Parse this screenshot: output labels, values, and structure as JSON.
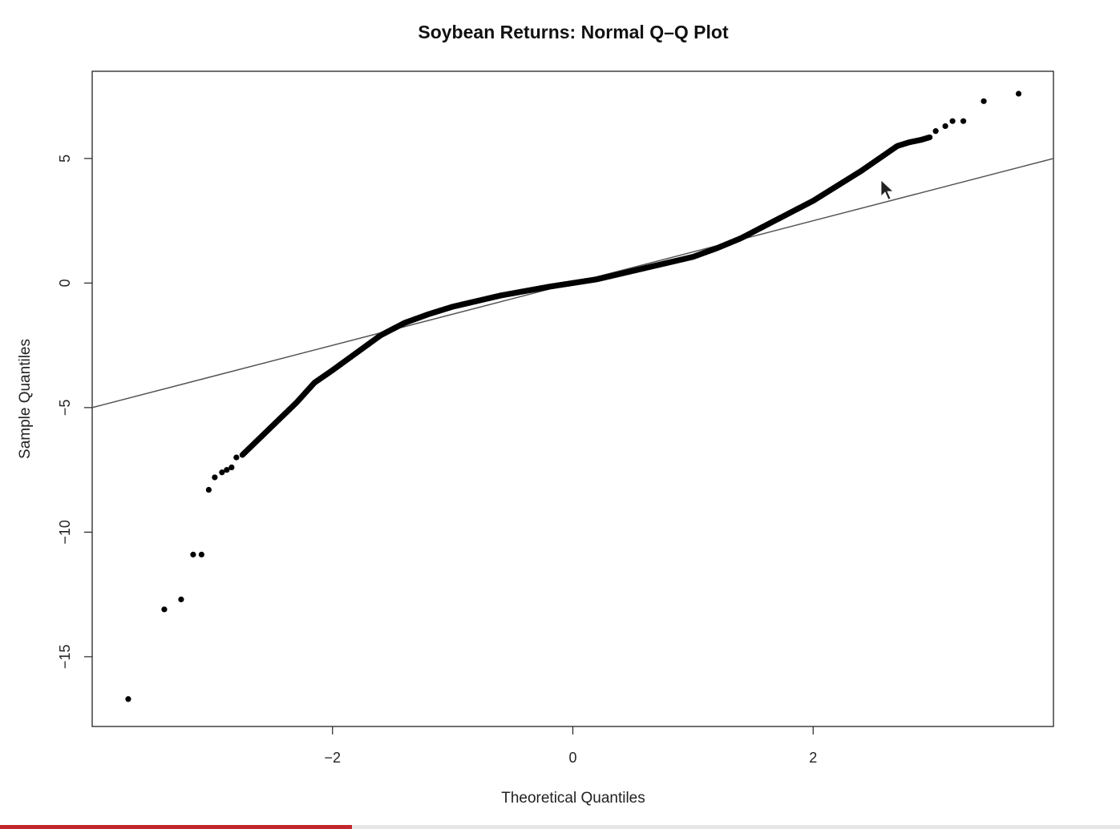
{
  "chart_data": {
    "type": "scatter",
    "title": "Soybean Returns: Normal Q–Q Plot",
    "xlabel": "Theoretical Quantiles",
    "ylabel": "Sample Quantiles",
    "xlim": [
      -4.0,
      4.0
    ],
    "ylim": [
      -17.8,
      8.5
    ],
    "xticks": [
      -2,
      0,
      2
    ],
    "xtick_labels": [
      "−2",
      "0",
      "2"
    ],
    "yticks": [
      -15,
      -10,
      -5,
      0,
      5
    ],
    "ytick_labels": [
      "−15",
      "−10",
      "−5",
      "0",
      "5"
    ],
    "grid": false,
    "reference_line": {
      "slope": 1.25,
      "intercept": 0.0,
      "color": "#555555"
    },
    "outliers": {
      "x": [
        -3.7,
        -3.4,
        -3.26,
        -3.16,
        -3.09,
        -3.03,
        -2.98,
        -2.92,
        -2.88,
        -2.84,
        -2.8,
        3.02,
        3.1,
        3.16,
        3.25,
        3.42,
        3.71
      ],
      "y": [
        -16.7,
        -13.1,
        -12.7,
        -10.9,
        -10.9,
        -8.3,
        -7.8,
        -7.6,
        -7.5,
        -7.4,
        -7.0,
        6.1,
        6.3,
        6.5,
        6.5,
        7.3,
        7.6
      ]
    },
    "bulk_curve": {
      "x": [
        -2.75,
        -2.6,
        -2.45,
        -2.3,
        -2.15,
        -2.0,
        -1.8,
        -1.6,
        -1.4,
        -1.2,
        -1.0,
        -0.6,
        -0.2,
        0.0,
        0.2,
        0.6,
        1.0,
        1.2,
        1.4,
        1.6,
        1.8,
        2.0,
        2.2,
        2.4,
        2.55,
        2.7,
        2.8,
        2.9,
        2.97
      ],
      "y": [
        -6.9,
        -6.2,
        -5.5,
        -4.8,
        -4.0,
        -3.5,
        -2.8,
        -2.1,
        -1.6,
        -1.25,
        -0.95,
        -0.5,
        -0.15,
        0.0,
        0.15,
        0.6,
        1.05,
        1.4,
        1.8,
        2.3,
        2.8,
        3.3,
        3.9,
        4.5,
        5.0,
        5.5,
        5.65,
        5.75,
        5.85
      ]
    },
    "bulk_point_count": 900
  },
  "progress": {
    "fraction": 0.314
  }
}
